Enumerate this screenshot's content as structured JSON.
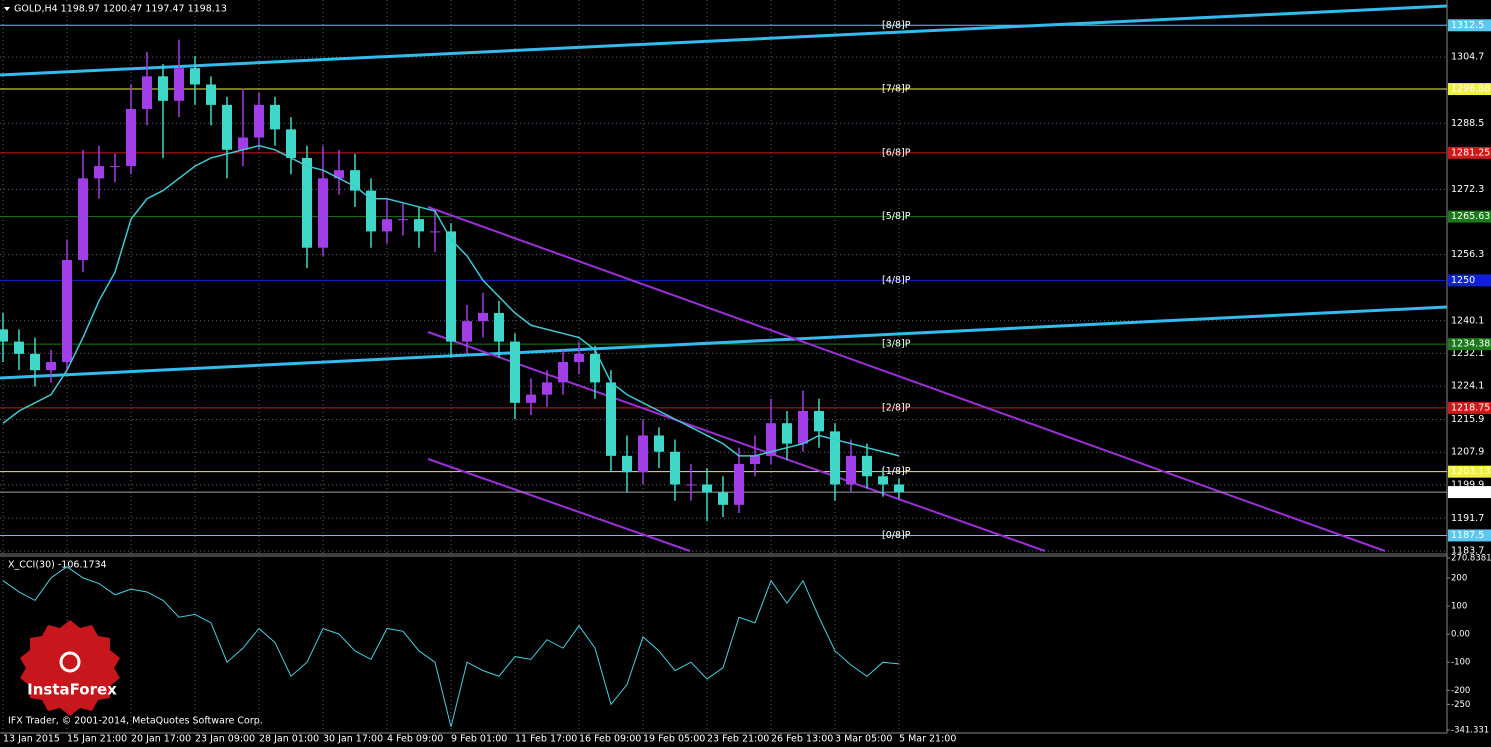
{
  "chart_data": [
    {
      "type": "candlestick",
      "title": "GOLD,H4  1198.97 1200.47 1197.47 1198.13",
      "categories": [
        "13 Jan 2015",
        null,
        null,
        null,
        "15 Jan 21:00",
        null,
        null,
        null,
        "20 Jan 17:00",
        null,
        null,
        null,
        "23 Jan 09:00",
        null,
        null,
        null,
        "28 Jan 01:00",
        null,
        null,
        null,
        "30 Jan 17:00",
        null,
        null,
        null,
        "4 Feb 09:00",
        null,
        null,
        null,
        "9 Feb 01:00",
        null,
        null,
        null,
        "11 Feb 17:00",
        null,
        null,
        null,
        "16 Feb 09:00",
        null,
        null,
        null,
        "19 Feb 05:00",
        null,
        null,
        null,
        "23 Feb 21:00",
        null,
        null,
        null,
        "26 Feb 13:00",
        null,
        null,
        null,
        "3 Mar 05:00",
        null,
        null,
        null,
        "5 Mar 21:00"
      ],
      "open": [
        1238,
        1235,
        1232,
        1228,
        1230,
        1255,
        1275,
        1278,
        1278,
        1292,
        1300,
        1294,
        1302,
        1298,
        1293,
        1282,
        1285,
        1293,
        1287,
        1280,
        1258,
        1275,
        1277,
        1272,
        1262,
        1265,
        1265,
        1262,
        1262,
        1235,
        1240,
        1242,
        1235,
        1220,
        1222,
        1225,
        1230,
        1232,
        1225,
        1207,
        1203,
        1212,
        1208,
        1200,
        1200,
        1198,
        1195,
        1205,
        1207,
        1215,
        1210,
        1218,
        1213,
        1200,
        1207,
        1202,
        1200
      ],
      "high": [
        1242,
        1238,
        1236,
        1233,
        1260,
        1282,
        1283,
        1281,
        1298,
        1306,
        1303,
        1309,
        1305,
        1300,
        1295,
        1297,
        1296,
        1295,
        1290,
        1283,
        1283,
        1282,
        1281,
        1275,
        1270,
        1269,
        1268,
        1267,
        1264,
        1244,
        1247,
        1245,
        1237,
        1226,
        1228,
        1233,
        1235,
        1234,
        1228,
        1212,
        1216,
        1214,
        1211,
        1205,
        1204,
        1202,
        1209,
        1212,
        1221,
        1218,
        1223,
        1221,
        1215,
        1211,
        1210,
        1204,
        1201.5
      ],
      "low": [
        1230,
        1228,
        1224,
        1225,
        1228,
        1252,
        1270,
        1274,
        1276,
        1288,
        1280,
        1290,
        1293,
        1288,
        1275,
        1278,
        1282,
        1283,
        1276,
        1253,
        1256,
        1271,
        1268,
        1258,
        1259,
        1261,
        1258,
        1257,
        1231,
        1232,
        1236,
        1231,
        1216,
        1217,
        1219,
        1222,
        1227,
        1221,
        1203,
        1198,
        1200,
        1204,
        1196,
        1196,
        1191,
        1192,
        1193,
        1202,
        1205,
        1206,
        1208,
        1209,
        1196,
        1198,
        1199,
        1197,
        1196.5
      ],
      "close": [
        1235,
        1232,
        1228,
        1230,
        1255,
        1275,
        1278,
        1278,
        1292,
        1300,
        1294,
        1302,
        1298,
        1293,
        1282,
        1285,
        1293,
        1287,
        1280,
        1258,
        1275,
        1277,
        1272,
        1262,
        1265,
        1265,
        1262,
        1262,
        1235,
        1240,
        1242,
        1235,
        1220,
        1222,
        1225,
        1230,
        1232,
        1225,
        1207,
        1203,
        1212,
        1208,
        1200,
        1200,
        1198,
        1195,
        1205,
        1207,
        1215,
        1210,
        1218,
        1213,
        1200,
        1207,
        1202,
        1200,
        1198.13
      ],
      "ma": [
        1215,
        1218,
        1220,
        1222,
        1228,
        1236,
        1245,
        1252,
        1265,
        1270,
        1272,
        1275,
        1278,
        1280,
        1281,
        1282,
        1283,
        1282,
        1280,
        1278,
        1277,
        1275,
        1273,
        1270,
        1270,
        1269,
        1268,
        1267,
        1260,
        1256,
        1250,
        1246,
        1242,
        1239,
        1238,
        1237,
        1236,
        1233,
        1225,
        1222,
        1220,
        1218,
        1216,
        1214,
        1212,
        1210,
        1207,
        1207,
        1208,
        1209,
        1210,
        1212,
        1211,
        1210,
        1209,
        1208,
        1207
      ],
      "up_color": "#a23ee8",
      "down_color": "#3fd8c8",
      "ma_color": "#40c8d0",
      "ylim": [
        1183.2,
        1318.7
      ],
      "yticks": [
        1304.7,
        1288.5,
        1272.3,
        1256.3,
        1240.1,
        1232.1,
        1224.1,
        1215.9,
        1207.9,
        1199.9,
        1191.7,
        1183.7
      ],
      "grid": true,
      "levels": [
        {
          "name": "[8/8]P",
          "value": 1312.5,
          "color": "#5cc8f0"
        },
        {
          "name": "[7/8]P",
          "value": 1296.88,
          "color": "#f0f040"
        },
        {
          "name": "[6/8]P",
          "value": 1281.25,
          "color": "#d01818"
        },
        {
          "name": "[5/8]P",
          "value": 1265.63,
          "color": "#1a7a1a"
        },
        {
          "name": "[4/8]P",
          "value": 1250.0,
          "color": "#1020d8"
        },
        {
          "name": "[3/8]P",
          "value": 1234.38,
          "color": "#1a7a1a"
        },
        {
          "name": "[2/8]P",
          "value": 1218.75,
          "color": "#d01818"
        },
        {
          "name": "[1/8]P",
          "value": 1203.13,
          "color": "#f0f040"
        },
        {
          "name": "[0/8]P",
          "value": 1187.5,
          "color": "#5cc8f0"
        }
      ],
      "bid": 1198.13
    },
    {
      "type": "line",
      "label": "X_CCI(30) -106.1734",
      "color": "#48d0e0",
      "values": [
        190,
        150,
        120,
        200,
        240,
        200,
        180,
        140,
        160,
        150,
        120,
        60,
        70,
        40,
        -100,
        -50,
        20,
        -30,
        -150,
        -100,
        20,
        0,
        -60,
        -90,
        20,
        10,
        -60,
        -100,
        -330,
        -100,
        -130,
        -150,
        -80,
        -90,
        -20,
        -50,
        30,
        -50,
        -250,
        -180,
        -10,
        -60,
        -130,
        -100,
        -160,
        -120,
        60,
        40,
        190,
        110,
        190,
        60,
        -60,
        -110,
        -150,
        -100,
        -106.1734
      ],
      "ylim": [
        -341.331,
        270.8381
      ],
      "yticks": [
        270.8381,
        200,
        100,
        {
          "value": 0,
          "label": "0.00"
        },
        -100,
        -200,
        -250,
        -341.331
      ]
    }
  ],
  "footer": "IFX Trader, © 2001-2014, MetaQuotes Software Corp.",
  "logo": "InstaForex"
}
